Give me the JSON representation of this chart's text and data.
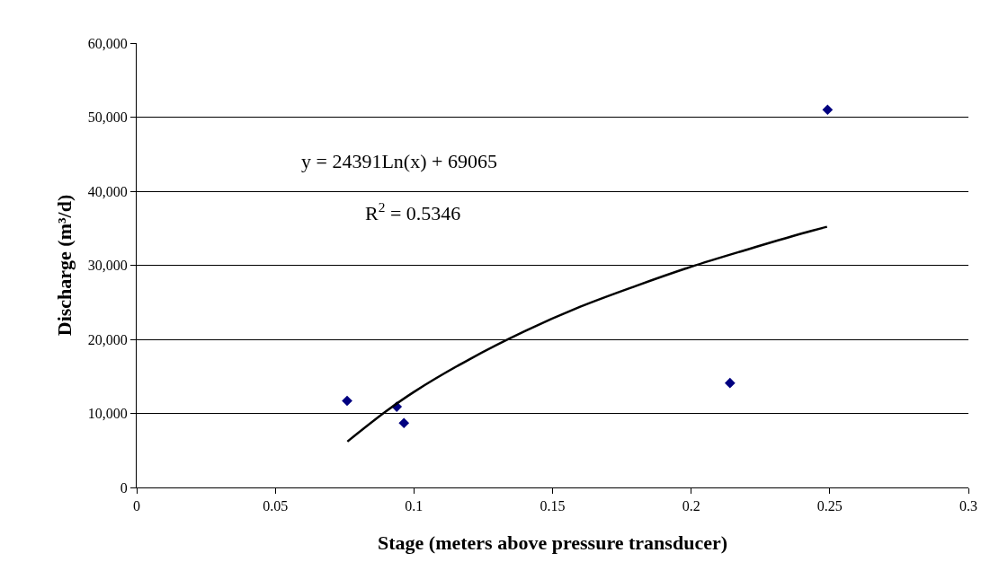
{
  "chart_data": {
    "type": "scatter",
    "xlabel": "Stage (meters above pressure transducer)",
    "ylabel": "Discharge (m³/d)",
    "series": [
      {
        "color": "#000080",
        "marker": "diamond",
        "x": [
          0.0759,
          0.0938,
          0.0964,
          0.214,
          0.2492
        ],
        "values": [
          11700,
          10900,
          8700,
          14100,
          51000
        ]
      },
      {
        "type": "line",
        "color": "#000000",
        "marker": "none",
        "line_style": "solid",
        "x": [
          0.076,
          0.09,
          0.1,
          0.12,
          0.14,
          0.16,
          0.18,
          0.2,
          0.22,
          0.24,
          0.249
        ],
        "values": [
          6200,
          10300,
          12900,
          17300,
          21100,
          24400,
          27200,
          29800,
          32100,
          34300,
          35200
        ]
      }
    ],
    "annotations": [
      "y = 24391Ln(x) + 69065",
      "R$^{2}$ = 0.5346"
    ],
    "xlim": [
      0,
      0.3
    ],
    "xticks": [
      0,
      0.05,
      0.1,
      0.15,
      0.2,
      0.25,
      0.3
    ],
    "ylim": [
      0,
      60000
    ],
    "yticks": [
      {
        "value": 0,
        "label": "0"
      },
      {
        "value": 10000,
        "label": "10,000"
      },
      {
        "value": 20000,
        "label": "20,000"
      },
      {
        "value": 30000,
        "label": "30,000"
      },
      {
        "value": 40000,
        "label": "40,000"
      },
      {
        "value": 50000,
        "label": "50,000"
      },
      {
        "value": 60000,
        "label": "60,000"
      }
    ],
    "grid": "y"
  }
}
